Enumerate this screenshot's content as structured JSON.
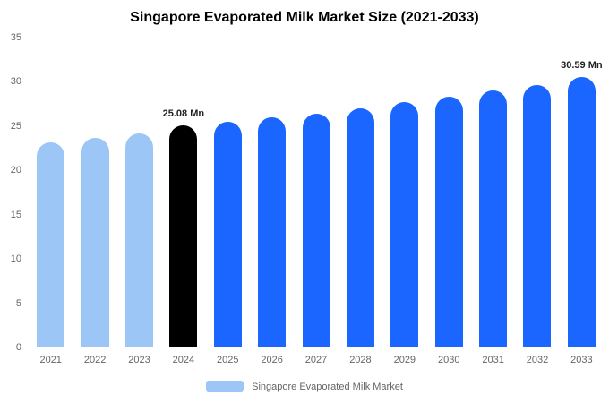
{
  "title": "Singapore Evaporated Milk Market Size (2021-2033)",
  "legend": {
    "label": "Singapore Evaporated Milk Market",
    "swatch_color": "#9cc6f5"
  },
  "palette": {
    "light": "#9cc6f5",
    "highlight": "#000000",
    "primary": "#1a66ff"
  },
  "chart_data": {
    "type": "bar",
    "title": "Singapore Evaporated Milk Market Size (2021-2033)",
    "xlabel": "",
    "ylabel": "",
    "unit": "Mn",
    "ylim": [
      0,
      35
    ],
    "yticks": [
      0,
      5,
      10,
      15,
      20,
      25,
      30,
      35
    ],
    "grid": false,
    "legend_position": "bottom",
    "categories": [
      "2021",
      "2022",
      "2023",
      "2024",
      "2025",
      "2026",
      "2027",
      "2028",
      "2029",
      "2030",
      "2031",
      "2032",
      "2033"
    ],
    "values": [
      23.2,
      23.65,
      24.2,
      25.08,
      25.45,
      25.95,
      26.45,
      27.05,
      27.7,
      28.3,
      29.0,
      29.65,
      30.59
    ],
    "bar_color_keys": [
      "light",
      "light",
      "light",
      "highlight",
      "primary",
      "primary",
      "primary",
      "primary",
      "primary",
      "primary",
      "primary",
      "primary",
      "primary"
    ],
    "annotations": [
      {
        "index": 3,
        "label": "25.08 Mn"
      },
      {
        "index": 12,
        "label": "30.59 Mn"
      }
    ]
  }
}
